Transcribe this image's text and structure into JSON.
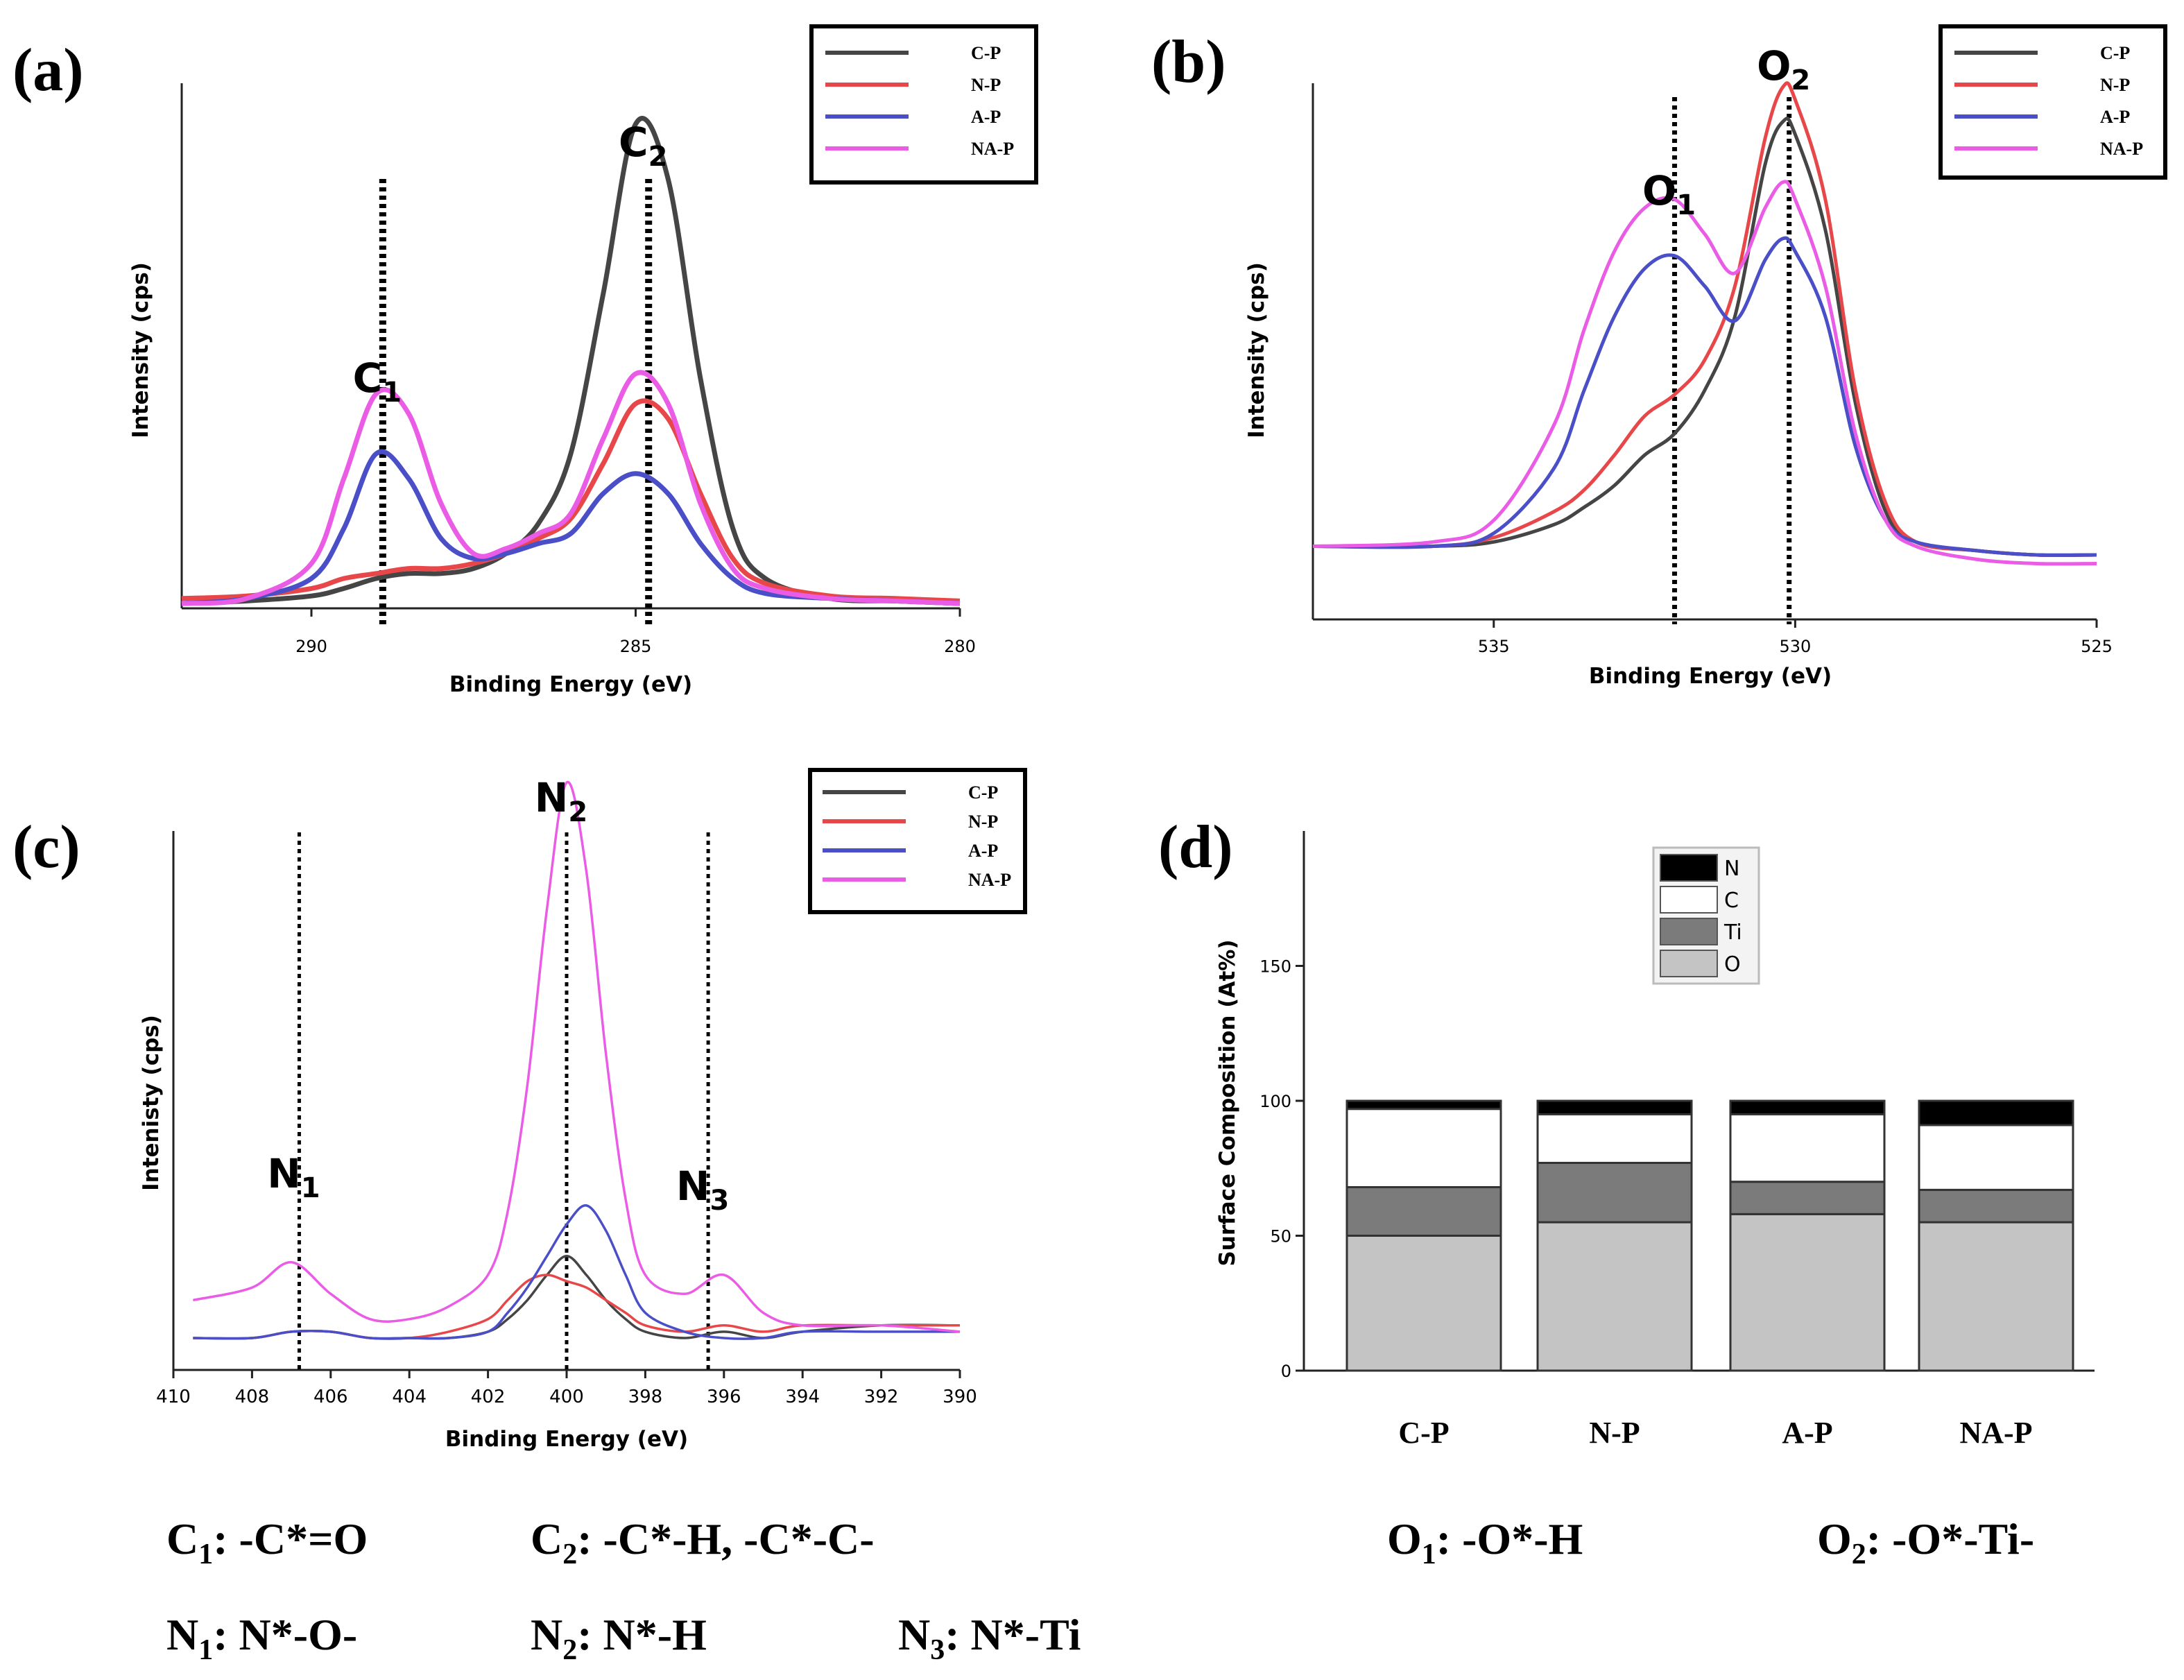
{
  "colors": {
    "C-P": "#454545",
    "N-P": "#e8474a",
    "A-P": "#4a4fc8",
    "NA-P": "#ea5ce6",
    "N": "#000000",
    "C": "#ffffff",
    "Ti": "#7b7b7b",
    "O": "#c4c4c4"
  },
  "panels": {
    "a": "(a)",
    "b": "(b)",
    "c": "(c)",
    "d": "(d)"
  },
  "notes": {
    "c1": {
      "base": "C",
      "sub": "1",
      "text": ": -C*=O"
    },
    "c2": {
      "base": "C",
      "sub": "2",
      "text": ": -C*-H, -C*-C-"
    },
    "n1": {
      "base": "N",
      "sub": "1",
      "text": ":  N*-O-"
    },
    "n2": {
      "base": "N",
      "sub": "2",
      "text": ": N*-H"
    },
    "n3": {
      "base": "N",
      "sub": "3",
      "text": ": N*-Ti"
    },
    "o1": {
      "base": "O",
      "sub": "1",
      "text": ": -O*-H"
    },
    "o2": {
      "base": "O",
      "sub": "2",
      "text": ": -O*-Ti-"
    }
  },
  "chart_data": [
    {
      "id": "a",
      "type": "line",
      "xlabel": "Binding Energy (eV)",
      "ylabel": "Intensity (cps)",
      "xlim": [
        292,
        280
      ],
      "ylim": [
        0,
        1
      ],
      "xticks": [
        290,
        285,
        280
      ],
      "legend": [
        "C-P",
        "N-P",
        "A-P",
        "NA-P"
      ],
      "legend_position": "top-right",
      "peaks": [
        {
          "base": "C",
          "sub": "1",
          "x": 288.9
        },
        {
          "base": "C",
          "sub": "2",
          "x": 284.8
        }
      ],
      "series": [
        {
          "name": "C-P",
          "x": [
            292,
            291,
            290,
            289.5,
            289,
            288.5,
            288,
            287.5,
            287,
            286.5,
            286,
            285.5,
            285,
            284.5,
            284,
            283.5,
            283,
            282,
            281,
            280
          ],
          "y": [
            0.0,
            0.005,
            0.015,
            0.03,
            0.05,
            0.06,
            0.06,
            0.07,
            0.1,
            0.16,
            0.3,
            0.62,
            0.96,
            0.85,
            0.45,
            0.15,
            0.05,
            0.01,
            0.005,
            0.0
          ]
        },
        {
          "name": "N-P",
          "x": [
            292,
            291,
            290,
            289.5,
            289,
            288.5,
            288,
            287.5,
            287,
            286.5,
            286,
            285.5,
            285,
            284.5,
            284,
            283.5,
            283,
            282,
            281,
            280
          ],
          "y": [
            0.01,
            0.015,
            0.03,
            0.05,
            0.06,
            0.07,
            0.07,
            0.08,
            0.1,
            0.13,
            0.17,
            0.28,
            0.4,
            0.37,
            0.22,
            0.09,
            0.04,
            0.015,
            0.01,
            0.005
          ]
        },
        {
          "name": "A-P",
          "x": [
            292,
            291,
            290,
            289.5,
            289,
            288.5,
            288,
            287.5,
            287,
            286.5,
            286,
            285.5,
            285,
            284.5,
            284,
            283.5,
            283,
            282,
            281,
            280
          ],
          "y": [
            0.0,
            0.01,
            0.05,
            0.15,
            0.3,
            0.25,
            0.13,
            0.09,
            0.1,
            0.12,
            0.14,
            0.22,
            0.26,
            0.22,
            0.12,
            0.05,
            0.02,
            0.01,
            0.005,
            0.0
          ]
        },
        {
          "name": "NA-P",
          "x": [
            292,
            291,
            290,
            289.5,
            289,
            288.5,
            288,
            287.5,
            287,
            286.5,
            286,
            285.5,
            285,
            284.5,
            284,
            283.5,
            283,
            282,
            281,
            280
          ],
          "y": [
            0.0,
            0.01,
            0.08,
            0.25,
            0.42,
            0.38,
            0.2,
            0.1,
            0.11,
            0.14,
            0.18,
            0.33,
            0.46,
            0.4,
            0.2,
            0.07,
            0.03,
            0.01,
            0.005,
            0.0
          ]
        }
      ]
    },
    {
      "id": "b",
      "type": "line",
      "xlabel": "Binding Energy (eV)",
      "ylabel": "Intensity (cps)",
      "xlim": [
        538,
        525
      ],
      "ylim": [
        0,
        1
      ],
      "xticks": [
        535,
        530,
        525
      ],
      "legend": [
        "C-P",
        "N-P",
        "A-P",
        "NA-P"
      ],
      "legend_position": "top-right",
      "peaks": [
        {
          "base": "O",
          "sub": "1",
          "x": 532.0
        },
        {
          "base": "O",
          "sub": "2",
          "x": 530.1
        }
      ],
      "series": [
        {
          "name": "C-P",
          "x": [
            538,
            536,
            535,
            534,
            533.5,
            533,
            532.5,
            532,
            531.5,
            531,
            530.5,
            530.2,
            530,
            529.5,
            529,
            528.5,
            528,
            527,
            526,
            525
          ],
          "y": [
            0.02,
            0.02,
            0.03,
            0.07,
            0.11,
            0.16,
            0.23,
            0.28,
            0.38,
            0.55,
            0.9,
            1.0,
            0.97,
            0.75,
            0.35,
            0.1,
            0.03,
            0.01,
            0.0,
            0.0
          ]
        },
        {
          "name": "N-P",
          "x": [
            538,
            536,
            535,
            534,
            533.5,
            533,
            532.5,
            532,
            531.5,
            531,
            530.5,
            530.2,
            530,
            529.5,
            529,
            528.5,
            528,
            527,
            526,
            525
          ],
          "y": [
            0.02,
            0.02,
            0.04,
            0.1,
            0.15,
            0.23,
            0.32,
            0.37,
            0.45,
            0.62,
            0.96,
            1.08,
            1.05,
            0.82,
            0.38,
            0.12,
            0.03,
            0.01,
            0.0,
            0.0
          ]
        },
        {
          "name": "A-P",
          "x": [
            538,
            536,
            535,
            534,
            533.5,
            533,
            532.5,
            532,
            531.5,
            531,
            530.5,
            530.2,
            530,
            529.5,
            529,
            528.5,
            528,
            527,
            526,
            525
          ],
          "y": [
            0.02,
            0.02,
            0.05,
            0.2,
            0.38,
            0.55,
            0.66,
            0.69,
            0.62,
            0.54,
            0.68,
            0.73,
            0.7,
            0.55,
            0.25,
            0.08,
            0.03,
            0.01,
            0.0,
            0.0
          ]
        },
        {
          "name": "NA-P",
          "x": [
            538,
            536,
            535,
            534,
            533.5,
            533,
            532.5,
            532,
            531.5,
            531,
            530.5,
            530.2,
            530,
            529.5,
            529,
            528.5,
            528,
            527,
            526,
            525
          ],
          "y": [
            0.02,
            0.03,
            0.08,
            0.3,
            0.52,
            0.7,
            0.8,
            0.82,
            0.74,
            0.65,
            0.8,
            0.86,
            0.82,
            0.62,
            0.28,
            0.08,
            0.02,
            -0.01,
            -0.02,
            -0.02
          ]
        }
      ]
    },
    {
      "id": "c",
      "type": "line",
      "xlabel": "Binding Energy (eV)",
      "ylabel": "Intenisty (cps)",
      "xlim": [
        410,
        390
      ],
      "ylim": [
        0,
        1
      ],
      "xticks": [
        410,
        408,
        406,
        404,
        402,
        400,
        398,
        396,
        394,
        392,
        390
      ],
      "legend": [
        "C-P",
        "N-P",
        "A-P",
        "NA-P"
      ],
      "legend_position": "top-right",
      "peaks": [
        {
          "base": "N",
          "sub": "1",
          "x": 406.8
        },
        {
          "base": "N",
          "sub": "2",
          "x": 400.0
        },
        {
          "base": "N",
          "sub": "3",
          "x": 396.4
        }
      ],
      "series": [
        {
          "name": "C-P",
          "x": [
            409.5,
            408,
            407,
            406,
            405,
            404,
            403,
            402,
            401.5,
            401,
            400.5,
            400,
            399.5,
            399,
            398.5,
            398,
            397,
            396,
            395,
            394,
            392,
            390
          ],
          "y": [
            0.1,
            0.1,
            0.11,
            0.11,
            0.1,
            0.1,
            0.1,
            0.11,
            0.13,
            0.16,
            0.2,
            0.23,
            0.2,
            0.16,
            0.13,
            0.11,
            0.1,
            0.11,
            0.1,
            0.11,
            0.12,
            0.12
          ]
        },
        {
          "name": "N-P",
          "x": [
            409.5,
            408,
            407,
            406,
            405,
            404,
            403,
            402,
            401.5,
            401,
            400.5,
            400,
            399.5,
            399,
            398.5,
            398,
            397,
            396,
            395,
            394,
            392,
            390
          ],
          "y": [
            0.1,
            0.1,
            0.11,
            0.11,
            0.1,
            0.1,
            0.11,
            0.13,
            0.16,
            0.19,
            0.2,
            0.19,
            0.18,
            0.16,
            0.14,
            0.12,
            0.11,
            0.12,
            0.11,
            0.12,
            0.12,
            0.12
          ]
        },
        {
          "name": "A-P",
          "x": [
            409.5,
            408,
            407,
            406,
            405,
            404,
            403,
            402,
            401.5,
            401,
            400.5,
            400,
            399.5,
            399,
            398.5,
            398,
            397,
            396,
            395,
            394,
            392,
            390
          ],
          "y": [
            0.1,
            0.1,
            0.11,
            0.11,
            0.1,
            0.1,
            0.1,
            0.11,
            0.14,
            0.18,
            0.23,
            0.28,
            0.31,
            0.27,
            0.2,
            0.14,
            0.11,
            0.1,
            0.1,
            0.11,
            0.11,
            0.11
          ]
        },
        {
          "name": "NA-P",
          "x": [
            409.5,
            408,
            407,
            406,
            405,
            404,
            403,
            402,
            401.5,
            401,
            400.5,
            400,
            399.5,
            399,
            398.5,
            398,
            397,
            396,
            395,
            394,
            392,
            390
          ],
          "y": [
            0.16,
            0.18,
            0.22,
            0.17,
            0.13,
            0.13,
            0.15,
            0.2,
            0.3,
            0.5,
            0.78,
            0.98,
            0.84,
            0.55,
            0.32,
            0.2,
            0.17,
            0.2,
            0.14,
            0.12,
            0.12,
            0.11
          ]
        }
      ]
    },
    {
      "id": "d",
      "type": "bar",
      "stacked": true,
      "ylabel": "Surface Composition (At%)",
      "xlabel": "",
      "ylim": [
        0,
        200
      ],
      "yticks": [
        0,
        50,
        100,
        150
      ],
      "categories": [
        "C-P",
        "N-P",
        "A-P",
        "NA-P"
      ],
      "legend": [
        "N",
        "C",
        "Ti",
        "O"
      ],
      "legend_position": "top-center",
      "series": [
        {
          "name": "O",
          "values": [
            50,
            55,
            58,
            55
          ]
        },
        {
          "name": "Ti",
          "values": [
            18,
            22,
            12,
            12
          ]
        },
        {
          "name": "C",
          "values": [
            29,
            18,
            25,
            24
          ]
        },
        {
          "name": "N",
          "values": [
            3,
            5,
            5,
            9
          ]
        }
      ]
    }
  ]
}
